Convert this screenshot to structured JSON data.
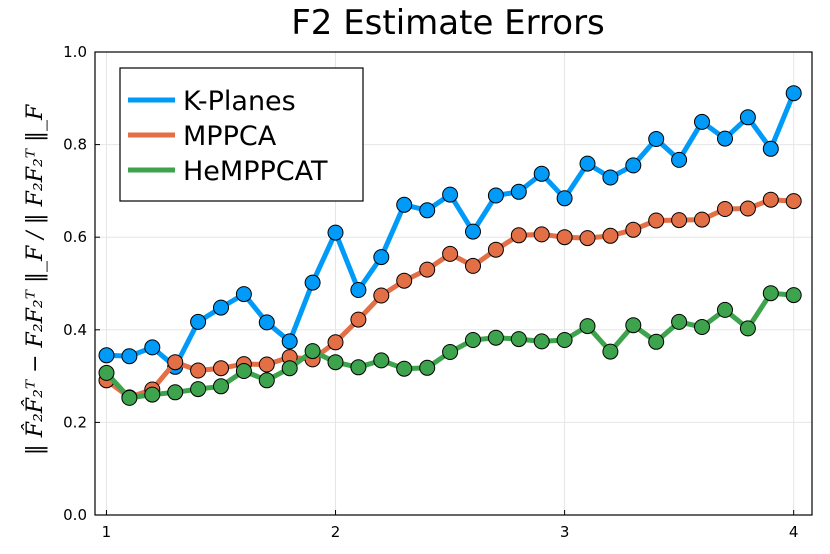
{
  "chart_data": {
    "type": "line",
    "title": "F2 Estimate Errors",
    "ylabel": "‖ F̂₂F̂₂ᵀ − F₂F₂ᵀ ‖_F / ‖ F₂F₂ᵀ ‖_F",
    "xlabel": "",
    "xlim": [
      0.95,
      4.08
    ],
    "ylim": [
      0.0,
      1.0
    ],
    "xticks": [
      1,
      2,
      3,
      4
    ],
    "yticks": [
      0.0,
      0.2,
      0.4,
      0.6,
      0.8,
      1.0
    ],
    "xtick_labels": [
      "1",
      "2",
      "3",
      "4"
    ],
    "ytick_labels": [
      "0.0",
      "0.2",
      "0.4",
      "0.6",
      "0.8",
      "1.0"
    ],
    "grid": true,
    "legend_position": "top-left",
    "x": [
      1.0,
      1.1,
      1.2,
      1.3,
      1.4,
      1.5,
      1.6,
      1.7,
      1.8,
      1.9,
      2.0,
      2.1,
      2.2,
      2.3,
      2.4,
      2.5,
      2.6,
      2.7,
      2.8,
      2.9,
      3.0,
      3.1,
      3.2,
      3.3,
      3.4,
      3.5,
      3.6,
      3.7,
      3.8,
      3.9,
      4.0
    ],
    "series": [
      {
        "name": "K-Planes",
        "color": "#009af9",
        "values": [
          0.345,
          0.343,
          0.362,
          0.32,
          0.417,
          0.448,
          0.477,
          0.416,
          0.375,
          0.502,
          0.61,
          0.486,
          0.557,
          0.67,
          0.658,
          0.692,
          0.612,
          0.69,
          0.698,
          0.737,
          0.684,
          0.759,
          0.729,
          0.755,
          0.812,
          0.767,
          0.849,
          0.813,
          0.859,
          0.791,
          0.911
        ]
      },
      {
        "name": "MPPCA",
        "color": "#e26f46",
        "values": [
          0.291,
          0.254,
          0.271,
          0.33,
          0.312,
          0.317,
          0.326,
          0.325,
          0.341,
          0.336,
          0.373,
          0.422,
          0.474,
          0.506,
          0.53,
          0.564,
          0.538,
          0.573,
          0.604,
          0.606,
          0.6,
          0.598,
          0.603,
          0.616,
          0.636,
          0.637,
          0.638,
          0.661,
          0.662,
          0.681,
          0.678
        ]
      },
      {
        "name": "HeMPPCAT",
        "color": "#3da44d",
        "values": [
          0.307,
          0.253,
          0.26,
          0.265,
          0.272,
          0.278,
          0.311,
          0.291,
          0.317,
          0.354,
          0.33,
          0.319,
          0.334,
          0.316,
          0.318,
          0.352,
          0.378,
          0.383,
          0.38,
          0.375,
          0.378,
          0.408,
          0.353,
          0.41,
          0.374,
          0.417,
          0.406,
          0.443,
          0.403,
          0.479,
          0.475
        ]
      }
    ]
  }
}
